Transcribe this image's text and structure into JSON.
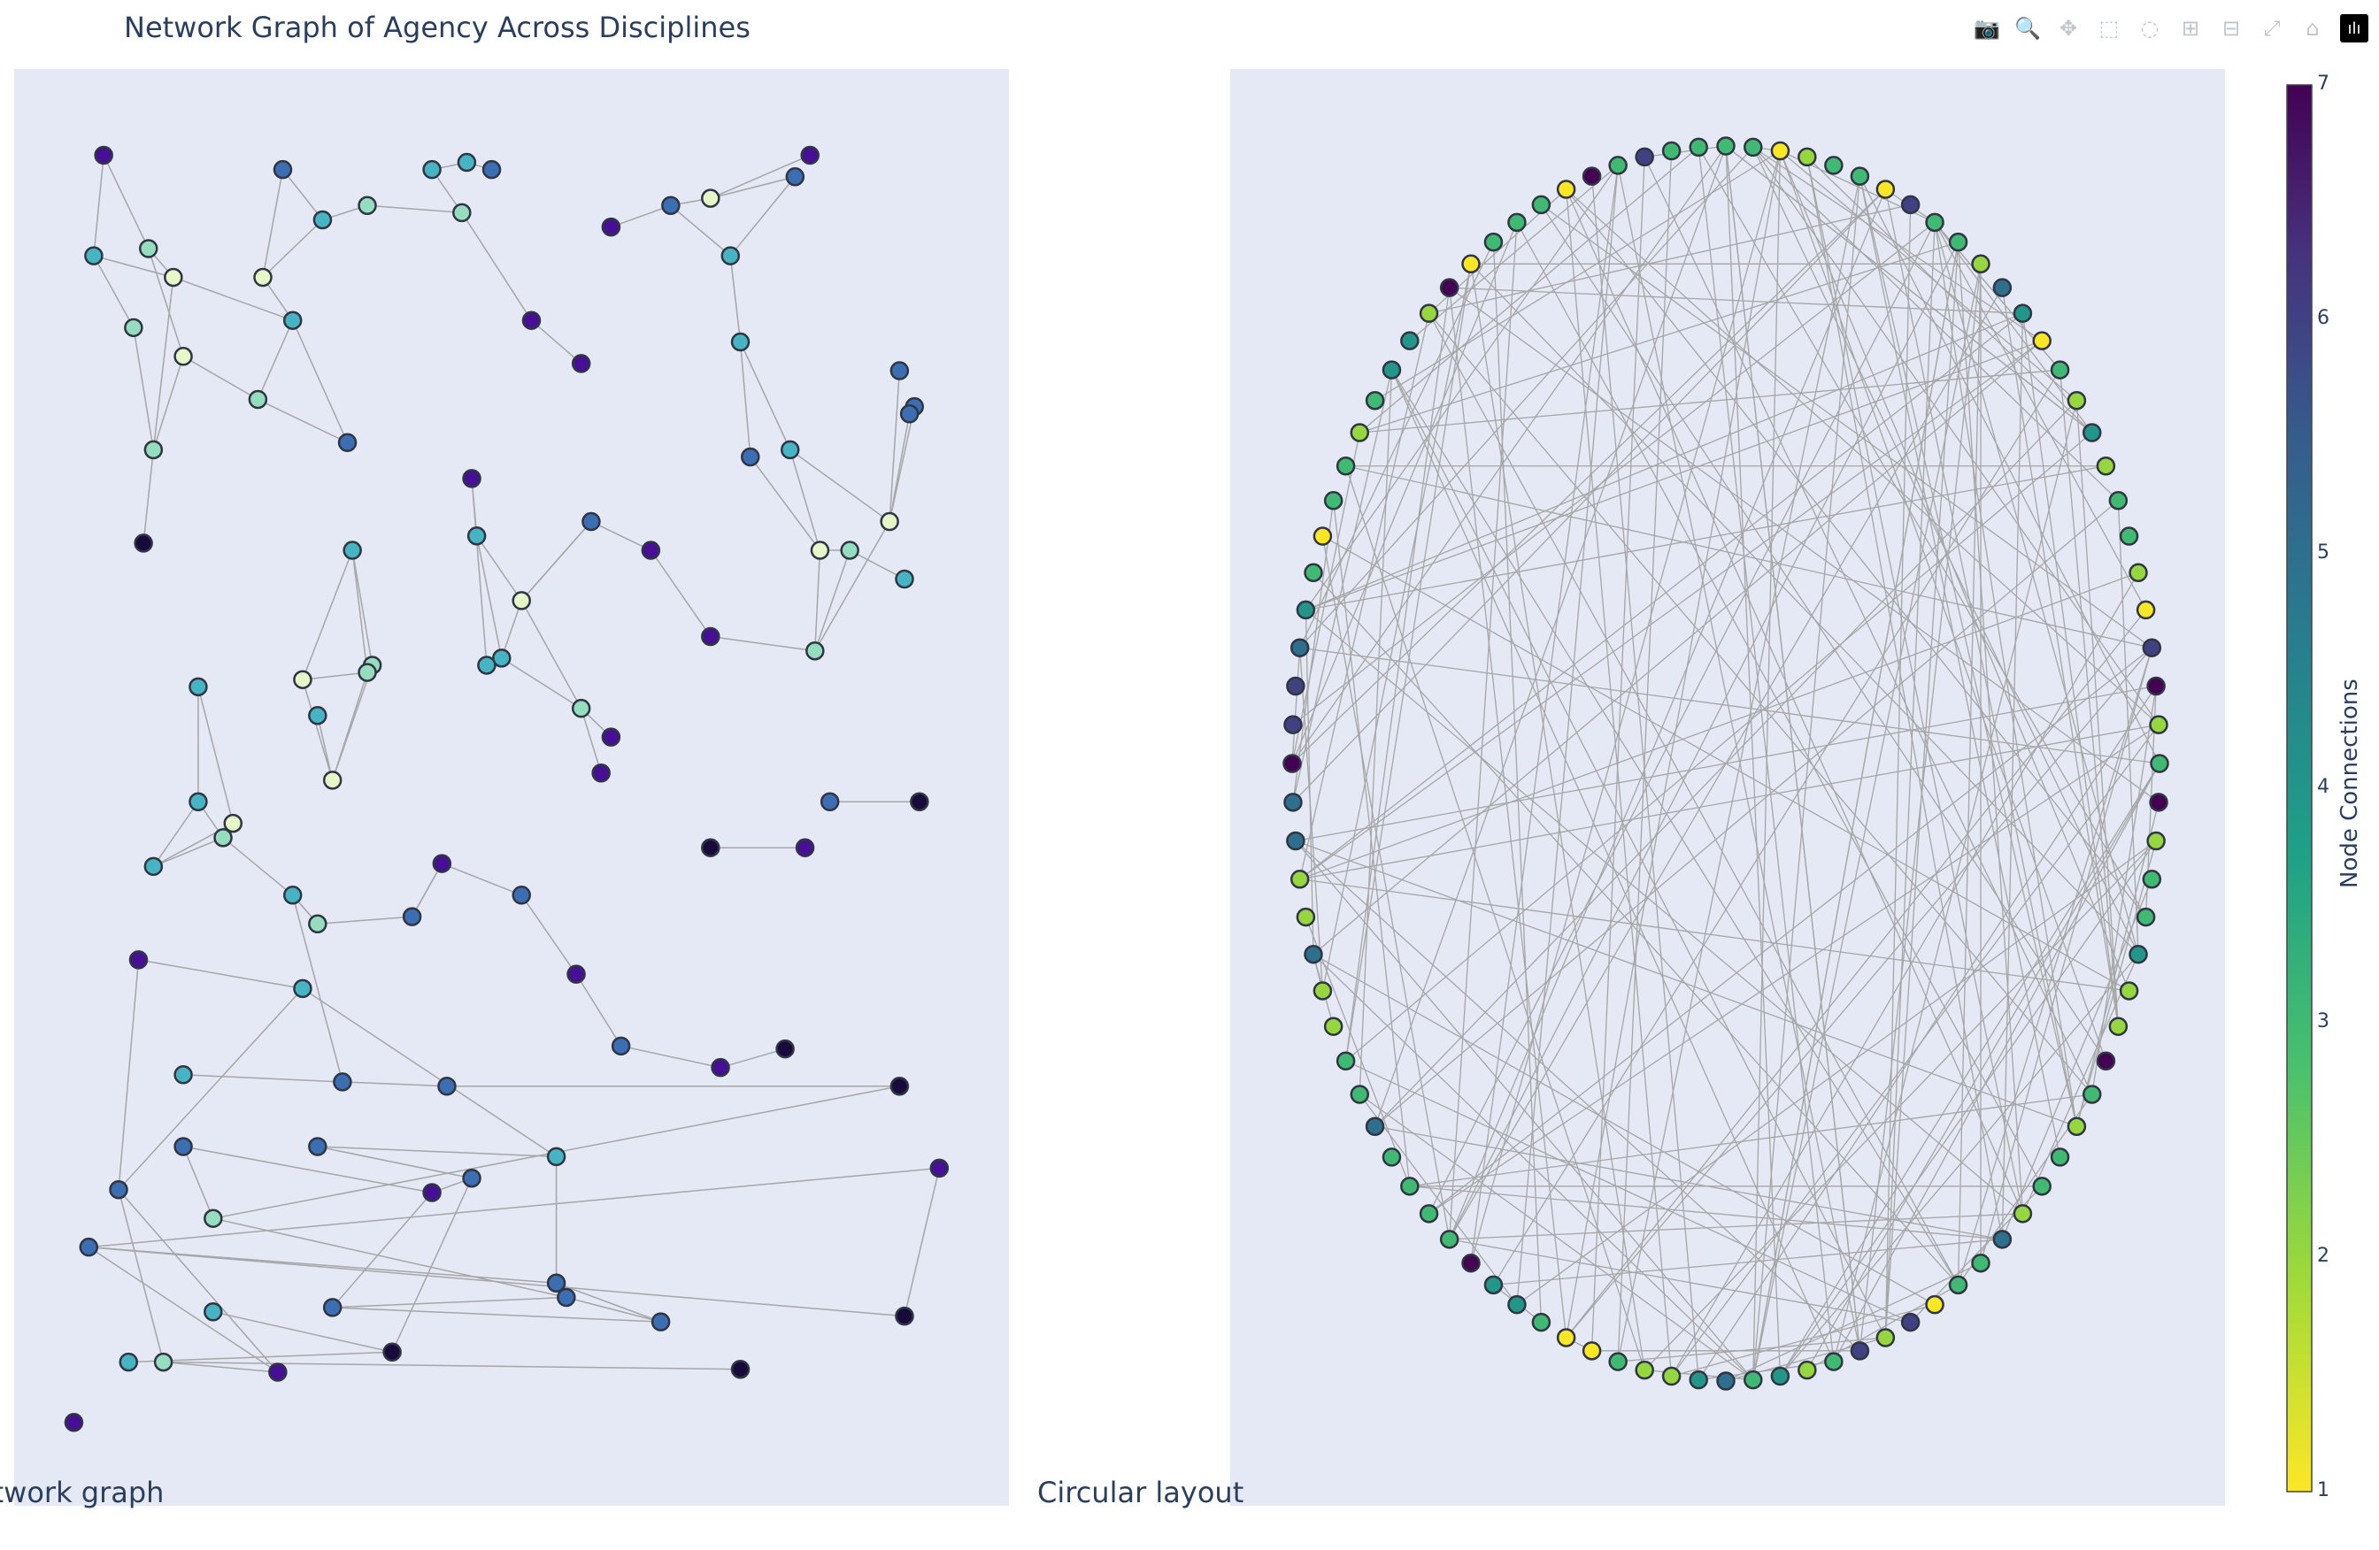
{
  "title": "Network Graph of Agency Across Disciplines",
  "modebar": {
    "buttons": [
      {
        "name": "camera-icon",
        "glyph": "📷"
      },
      {
        "name": "zoom-icon",
        "glyph": "🔍"
      },
      {
        "name": "pan-icon",
        "glyph": "✥"
      },
      {
        "name": "box-select-icon",
        "glyph": "⬚"
      },
      {
        "name": "lasso-icon",
        "glyph": "◌"
      },
      {
        "name": "zoom-in-icon",
        "glyph": "⊞"
      },
      {
        "name": "zoom-out-icon",
        "glyph": "⊟"
      },
      {
        "name": "autoscale-icon",
        "glyph": "⤢"
      },
      {
        "name": "reset-axes-icon",
        "glyph": "⌂"
      }
    ],
    "logo_glyph": "ılı"
  },
  "subplot_titles": [
    "Network graph",
    "Circular layout"
  ],
  "colors": {
    "plot_bg": "#e5e8f5",
    "edge": "#a6a6a6",
    "marker_outline": "#2f3542"
  },
  "chart_data": {
    "type": "scatter",
    "colorscale": "Viridis (reversed)",
    "colorbar": {
      "title": "Node Connections",
      "range": [
        1,
        7
      ],
      "ticks": [
        1,
        2,
        3,
        4,
        5,
        6,
        7
      ]
    },
    "axes": {
      "show_grid": false,
      "show_ticks": false
    },
    "network_nodes": [
      [
        0.09,
        0.94,
        6
      ],
      [
        0.08,
        0.87,
        4
      ],
      [
        0.135,
        0.875,
        3
      ],
      [
        0.12,
        0.82,
        3
      ],
      [
        0.16,
        0.855,
        2
      ],
      [
        0.17,
        0.8,
        2
      ],
      [
        0.14,
        0.735,
        3
      ],
      [
        0.13,
        0.67,
        7
      ],
      [
        0.27,
        0.93,
        5
      ],
      [
        0.31,
        0.895,
        4
      ],
      [
        0.355,
        0.905,
        3
      ],
      [
        0.42,
        0.93,
        4
      ],
      [
        0.455,
        0.935,
        4
      ],
      [
        0.48,
        0.93,
        5
      ],
      [
        0.45,
        0.9,
        3
      ],
      [
        0.25,
        0.855,
        2
      ],
      [
        0.28,
        0.825,
        4
      ],
      [
        0.245,
        0.77,
        3
      ],
      [
        0.335,
        0.74,
        5
      ],
      [
        0.52,
        0.825,
        6
      ],
      [
        0.57,
        0.795,
        6
      ],
      [
        0.6,
        0.89,
        6
      ],
      [
        0.66,
        0.905,
        5
      ],
      [
        0.7,
        0.91,
        2
      ],
      [
        0.8,
        0.94,
        6
      ],
      [
        0.785,
        0.925,
        5
      ],
      [
        0.72,
        0.87,
        4
      ],
      [
        0.73,
        0.81,
        4
      ],
      [
        0.74,
        0.73,
        5
      ],
      [
        0.78,
        0.735,
        4
      ],
      [
        0.89,
        0.79,
        5
      ],
      [
        0.905,
        0.765,
        5
      ],
      [
        0.9,
        0.76,
        5
      ],
      [
        0.81,
        0.665,
        2
      ],
      [
        0.84,
        0.665,
        3
      ],
      [
        0.88,
        0.685,
        2
      ],
      [
        0.895,
        0.645,
        4
      ],
      [
        0.805,
        0.595,
        3
      ],
      [
        0.46,
        0.715,
        6
      ],
      [
        0.465,
        0.675,
        4
      ],
      [
        0.51,
        0.63,
        2
      ],
      [
        0.58,
        0.685,
        5
      ],
      [
        0.64,
        0.665,
        6
      ],
      [
        0.7,
        0.605,
        6
      ],
      [
        0.49,
        0.59,
        4
      ],
      [
        0.475,
        0.585,
        4
      ],
      [
        0.57,
        0.555,
        3
      ],
      [
        0.6,
        0.535,
        6
      ],
      [
        0.59,
        0.51,
        6
      ],
      [
        0.34,
        0.665,
        4
      ],
      [
        0.29,
        0.575,
        2
      ],
      [
        0.36,
        0.585,
        3
      ],
      [
        0.355,
        0.58,
        3
      ],
      [
        0.305,
        0.55,
        4
      ],
      [
        0.32,
        0.505,
        2
      ],
      [
        0.185,
        0.57,
        4
      ],
      [
        0.185,
        0.49,
        4
      ],
      [
        0.22,
        0.475,
        2
      ],
      [
        0.21,
        0.465,
        3
      ],
      [
        0.14,
        0.445,
        4
      ],
      [
        0.82,
        0.49,
        5
      ],
      [
        0.91,
        0.49,
        7
      ],
      [
        0.7,
        0.458,
        7
      ],
      [
        0.795,
        0.458,
        6
      ],
      [
        0.43,
        0.447,
        6
      ],
      [
        0.51,
        0.425,
        5
      ],
      [
        0.4,
        0.41,
        5
      ],
      [
        0.28,
        0.425,
        4
      ],
      [
        0.305,
        0.405,
        3
      ],
      [
        0.565,
        0.37,
        6
      ],
      [
        0.61,
        0.32,
        5
      ],
      [
        0.71,
        0.305,
        6
      ],
      [
        0.775,
        0.318,
        7
      ],
      [
        0.125,
        0.38,
        6
      ],
      [
        0.29,
        0.36,
        4
      ],
      [
        0.17,
        0.3,
        4
      ],
      [
        0.33,
        0.295,
        5
      ],
      [
        0.435,
        0.292,
        5
      ],
      [
        0.89,
        0.292,
        7
      ],
      [
        0.17,
        0.25,
        5
      ],
      [
        0.305,
        0.25,
        5
      ],
      [
        0.105,
        0.22,
        5
      ],
      [
        0.2,
        0.2,
        3
      ],
      [
        0.42,
        0.218,
        6
      ],
      [
        0.46,
        0.228,
        5
      ],
      [
        0.545,
        0.243,
        4
      ],
      [
        0.93,
        0.235,
        6
      ],
      [
        0.075,
        0.18,
        5
      ],
      [
        0.545,
        0.155,
        5
      ],
      [
        0.555,
        0.145,
        5
      ],
      [
        0.32,
        0.138,
        5
      ],
      [
        0.65,
        0.128,
        5
      ],
      [
        0.895,
        0.132,
        7
      ],
      [
        0.2,
        0.135,
        4
      ],
      [
        0.38,
        0.107,
        7
      ],
      [
        0.115,
        0.1,
        4
      ],
      [
        0.15,
        0.1,
        3
      ],
      [
        0.265,
        0.093,
        6
      ],
      [
        0.73,
        0.095,
        7
      ],
      [
        0.06,
        0.058,
        6
      ]
    ],
    "network_edges": [
      [
        0,
        1
      ],
      [
        0,
        2
      ],
      [
        1,
        3
      ],
      [
        1,
        4
      ],
      [
        2,
        4
      ],
      [
        2,
        5
      ],
      [
        3,
        6
      ],
      [
        4,
        6
      ],
      [
        5,
        6
      ],
      [
        6,
        7
      ],
      [
        4,
        16
      ],
      [
        5,
        17
      ],
      [
        16,
        17
      ],
      [
        8,
        15
      ],
      [
        8,
        9
      ],
      [
        9,
        10
      ],
      [
        10,
        14
      ],
      [
        14,
        11
      ],
      [
        11,
        12
      ],
      [
        12,
        13
      ],
      [
        15,
        16
      ],
      [
        15,
        9
      ],
      [
        16,
        18
      ],
      [
        17,
        18
      ],
      [
        14,
        19
      ],
      [
        19,
        20
      ],
      [
        21,
        22
      ],
      [
        22,
        23
      ],
      [
        23,
        24
      ],
      [
        22,
        26
      ],
      [
        26,
        25
      ],
      [
        23,
        25
      ],
      [
        26,
        27
      ],
      [
        27,
        28
      ],
      [
        27,
        29
      ],
      [
        28,
        33
      ],
      [
        29,
        33
      ],
      [
        29,
        35
      ],
      [
        30,
        35
      ],
      [
        31,
        35
      ],
      [
        32,
        35
      ],
      [
        33,
        34
      ],
      [
        34,
        36
      ],
      [
        33,
        37
      ],
      [
        35,
        37
      ],
      [
        34,
        37
      ],
      [
        38,
        39
      ],
      [
        39,
        44
      ],
      [
        39,
        40
      ],
      [
        38,
        45
      ],
      [
        40,
        44
      ],
      [
        40,
        41
      ],
      [
        41,
        42
      ],
      [
        42,
        43
      ],
      [
        40,
        46
      ],
      [
        44,
        46
      ],
      [
        46,
        47
      ],
      [
        46,
        48
      ],
      [
        43,
        37
      ],
      [
        41,
        40
      ],
      [
        49,
        50
      ],
      [
        49,
        51
      ],
      [
        49,
        52
      ],
      [
        50,
        52
      ],
      [
        50,
        54
      ],
      [
        51,
        54
      ],
      [
        52,
        54
      ],
      [
        53,
        54
      ],
      [
        55,
        56
      ],
      [
        55,
        57
      ],
      [
        56,
        58
      ],
      [
        57,
        59
      ],
      [
        56,
        59
      ],
      [
        58,
        59
      ],
      [
        58,
        67
      ],
      [
        67,
        68
      ],
      [
        68,
        66
      ],
      [
        66,
        64
      ],
      [
        64,
        65
      ],
      [
        65,
        69
      ],
      [
        69,
        70
      ],
      [
        70,
        71
      ],
      [
        71,
        72
      ],
      [
        67,
        76
      ],
      [
        76,
        75
      ],
      [
        76,
        77
      ],
      [
        77,
        78
      ],
      [
        78,
        82
      ],
      [
        79,
        83
      ],
      [
        83,
        84
      ],
      [
        84,
        80
      ],
      [
        80,
        85
      ],
      [
        79,
        82
      ],
      [
        73,
        74
      ],
      [
        74,
        81
      ],
      [
        73,
        81
      ],
      [
        74,
        85
      ],
      [
        60,
        61
      ],
      [
        62,
        63
      ],
      [
        64,
        66
      ],
      [
        68,
        67
      ],
      [
        82,
        89
      ],
      [
        83,
        90
      ],
      [
        89,
        90
      ],
      [
        85,
        88
      ],
      [
        88,
        91
      ],
      [
        91,
        90
      ],
      [
        86,
        87
      ],
      [
        87,
        88
      ],
      [
        86,
        92
      ],
      [
        92,
        87
      ],
      [
        84,
        94
      ],
      [
        81,
        96
      ],
      [
        96,
        97
      ],
      [
        97,
        87
      ],
      [
        93,
        94
      ],
      [
        89,
        91
      ],
      [
        95,
        94
      ],
      [
        96,
        98
      ],
      [
        81,
        97
      ]
    ]
  }
}
